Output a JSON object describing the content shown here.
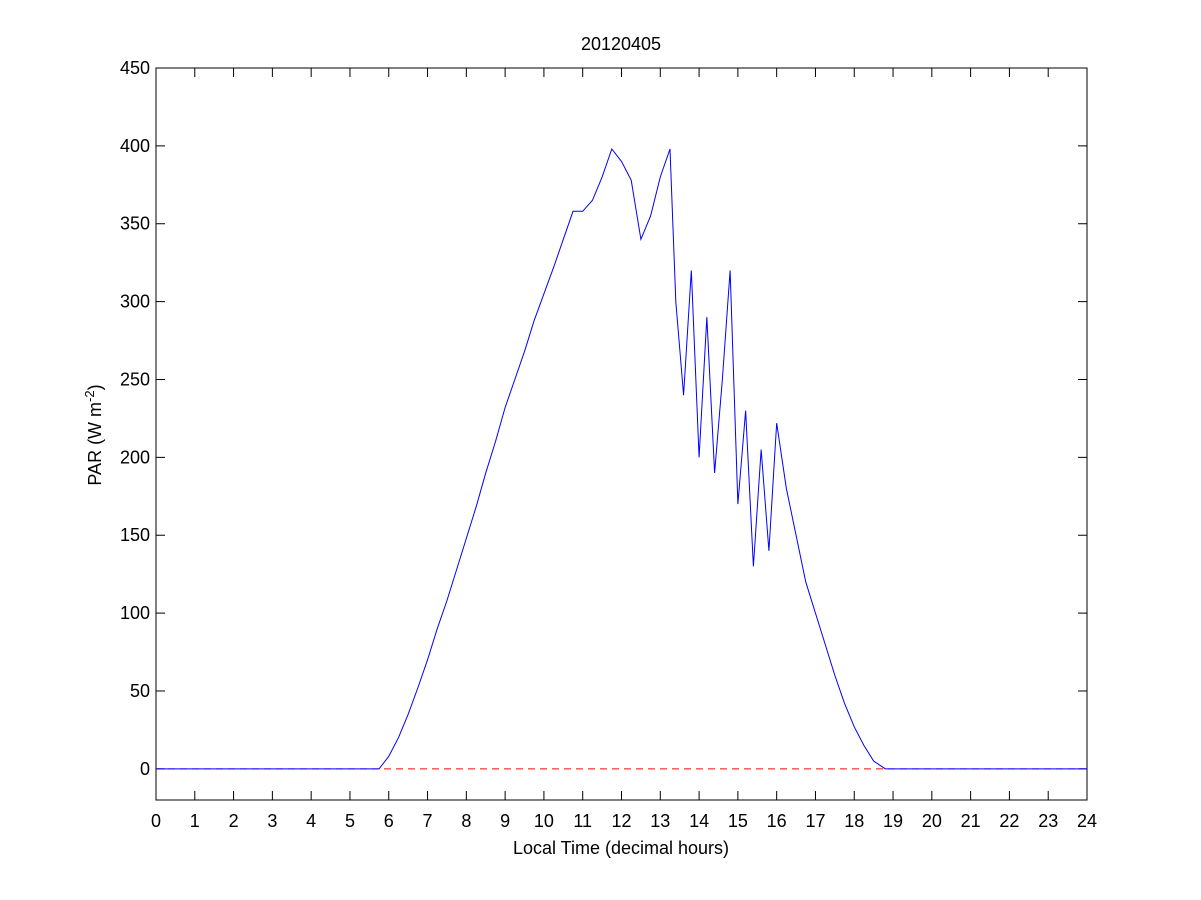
{
  "chart_data": {
    "type": "line",
    "title": "20120405",
    "xlabel": "Local Time (decimal hours)",
    "ylabel": {
      "text": "PAR (W m",
      "superscript": "-2",
      "suffix": ")"
    },
    "color": "#0000ff",
    "x": [
      0,
      5.75,
      6.0,
      6.25,
      6.5,
      6.75,
      7.0,
      7.25,
      7.5,
      7.75,
      8.0,
      8.25,
      8.5,
      8.75,
      9.0,
      9.25,
      9.5,
      9.75,
      10.0,
      10.25,
      10.5,
      10.75,
      11.0,
      11.25,
      11.5,
      11.75,
      12.0,
      12.25,
      12.5,
      12.75,
      13.0,
      13.25,
      13.4,
      13.6,
      13.8,
      14.0,
      14.2,
      14.4,
      14.6,
      14.8,
      15.0,
      15.2,
      15.4,
      15.6,
      15.8,
      16.0,
      16.25,
      16.5,
      16.75,
      17.0,
      17.25,
      17.5,
      17.75,
      18.0,
      18.25,
      18.5,
      18.8,
      24
    ],
    "values": [
      0,
      0,
      8,
      20,
      35,
      52,
      70,
      90,
      108,
      128,
      148,
      168,
      190,
      210,
      232,
      250,
      268,
      288,
      305,
      322,
      340,
      358,
      358,
      365,
      380,
      398,
      390,
      378,
      340,
      355,
      380,
      398,
      300,
      240,
      320,
      200,
      290,
      190,
      250,
      320,
      170,
      230,
      130,
      205,
      140,
      222,
      180,
      150,
      120,
      100,
      80,
      60,
      42,
      27,
      15,
      5,
      0,
      0
    ],
    "reference_line": {
      "value": 0,
      "color": "#ff0000",
      "style": "dashed"
    },
    "xlim": [
      0,
      24
    ],
    "xticks": [
      0,
      1,
      2,
      3,
      4,
      5,
      6,
      7,
      8,
      9,
      10,
      11,
      12,
      13,
      14,
      15,
      16,
      17,
      18,
      19,
      20,
      21,
      22,
      23,
      24
    ],
    "ylim": [
      -20,
      450
    ],
    "yticks": [
      0,
      50,
      100,
      150,
      200,
      250,
      300,
      350,
      400,
      450
    ]
  }
}
